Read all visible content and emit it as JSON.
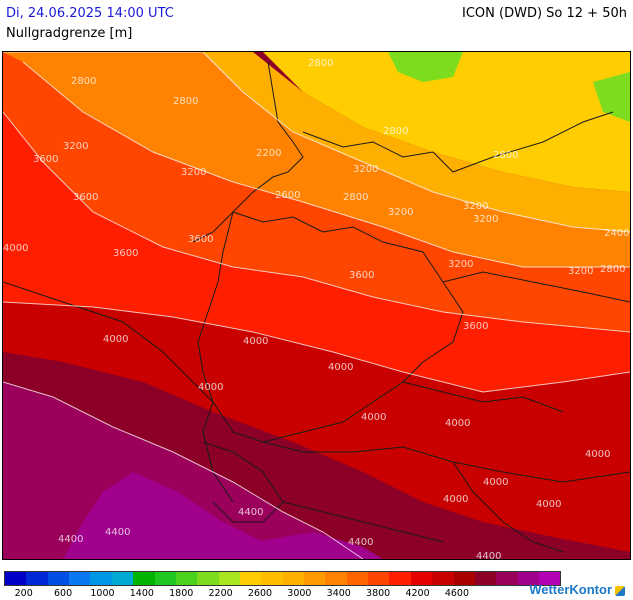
{
  "header": {
    "date_time": "Di, 24.06.2025 14:00 UTC",
    "model_run": "ICON (DWD) So 12 + 50h",
    "parameter": "Nullgradgrenze [m]"
  },
  "legend": {
    "colors": [
      "#0000c8",
      "#0028d7",
      "#0050e6",
      "#0a78f0",
      "#0096e6",
      "#00aad2",
      "#00b400",
      "#1ec81e",
      "#4bd21e",
      "#7ddc1e",
      "#aae61e",
      "#ffcd00",
      "#ffbe00",
      "#ffaf00",
      "#ff9b00",
      "#ff8200",
      "#ff6400",
      "#ff4600",
      "#ff1e00",
      "#e60000",
      "#c80000",
      "#aa0000",
      "#8c0028",
      "#9b005a",
      "#a0008c",
      "#b400b4"
    ],
    "labels": [
      "200",
      "600",
      "1000",
      "1400",
      "1800",
      "2200",
      "2600",
      "3000",
      "3400",
      "3800",
      "4200",
      "4600"
    ]
  },
  "map": {
    "contour_labels": [
      "2800",
      "2800",
      "2800",
      "2800",
      "3200",
      "3200",
      "2200",
      "3200",
      "3600",
      "3600",
      "3600",
      "3600",
      "3200",
      "3200",
      "3200",
      "3600",
      "3200",
      "2600",
      "3200",
      "2800",
      "2800",
      "3600",
      "4000",
      "4000",
      "4000",
      "4000",
      "4000",
      "4000",
      "4000",
      "4000",
      "4000",
      "4000",
      "4000",
      "4400",
      "4400",
      "4400",
      "4400",
      "4400",
      "2800",
      "2400"
    ],
    "fill_colors": {
      "yellow": "#ffcd00",
      "amber": "#ffaf00",
      "orange": "#ff8200",
      "redorange": "#ff4600",
      "red": "#ff1e00",
      "darkred": "#c80000",
      "maroon": "#8c0028",
      "plum": "#9b005a",
      "purple": "#a0008c",
      "green": "#7ddc1e"
    }
  },
  "brand": "WetterKontor"
}
